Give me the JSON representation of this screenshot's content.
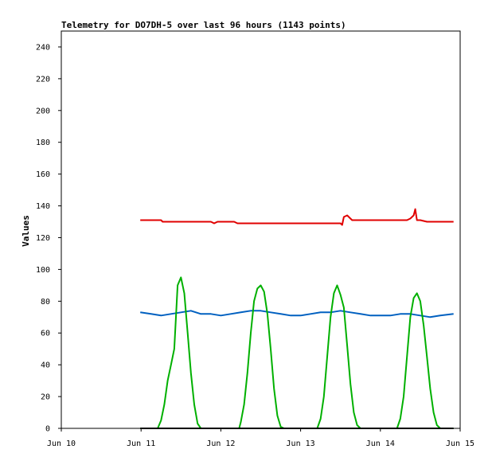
{
  "chart_data": {
    "type": "line",
    "title": "Telemetry for DO7DH-5 over last 96 hours (1143 points)",
    "xlabel": "",
    "ylabel": "Values",
    "xlim": [
      "Jun 10 00:00",
      "Jun 15 00:00"
    ],
    "ylim": [
      0,
      250
    ],
    "x_ticks": [
      "Jun 10",
      "Jun 11",
      "Jun 12",
      "Jun 13",
      "Jun 14",
      "Jun 15"
    ],
    "y_ticks": [
      0,
      20,
      40,
      60,
      80,
      100,
      120,
      140,
      160,
      180,
      200,
      220,
      240
    ],
    "grid": false,
    "legend": "none",
    "series": [
      {
        "color": "#e00000",
        "x": [
          "Jun 10 23:45",
          "Jun 11 06:00",
          "Jun 11 06:30",
          "Jun 11 21:00",
          "Jun 11 22:00",
          "Jun 11 23:00",
          "Jun 12 04:00",
          "Jun 12 05:00",
          "Jun 13 12:00",
          "Jun 13 12:30",
          "Jun 13 13:00",
          "Jun 13 14:00",
          "Jun 13 15:00",
          "Jun 13 15:30",
          "Jun 14 08:00",
          "Jun 14 09:00",
          "Jun 14 10:00",
          "Jun 14 10:30",
          "Jun 14 11:00",
          "Jun 14 12:00",
          "Jun 14 14:00",
          "Jun 14 22:00"
        ],
        "y": [
          131,
          131,
          130,
          130,
          129,
          130,
          130,
          129,
          129,
          128,
          133,
          134,
          132,
          131,
          131,
          132,
          134,
          138,
          131,
          131,
          130,
          130
        ]
      },
      {
        "color": "#0060c0",
        "x": [
          "Jun 10 23:45",
          "Jun 11 03:00",
          "Jun 11 06:00",
          "Jun 11 09:00",
          "Jun 11 12:00",
          "Jun 11 15:00",
          "Jun 11 18:00",
          "Jun 11 21:00",
          "Jun 12 00:00",
          "Jun 12 03:00",
          "Jun 12 06:00",
          "Jun 12 09:00",
          "Jun 12 12:00",
          "Jun 12 15:00",
          "Jun 12 18:00",
          "Jun 12 21:00",
          "Jun 13 00:00",
          "Jun 13 03:00",
          "Jun 13 06:00",
          "Jun 13 09:00",
          "Jun 13 12:00",
          "Jun 13 15:00",
          "Jun 13 18:00",
          "Jun 13 21:00",
          "Jun 14 00:00",
          "Jun 14 03:00",
          "Jun 14 06:00",
          "Jun 14 09:00",
          "Jun 14 12:00",
          "Jun 14 15:00",
          "Jun 14 18:00",
          "Jun 14 22:00"
        ],
        "y": [
          73,
          72,
          71,
          72,
          73,
          74,
          72,
          72,
          71,
          72,
          73,
          74,
          74,
          73,
          72,
          71,
          71,
          72,
          73,
          73,
          74,
          73,
          72,
          71,
          71,
          71,
          72,
          72,
          71,
          70,
          71,
          72
        ]
      },
      {
        "color": "#00b000",
        "x": [
          "Jun 10 23:45",
          "Jun 11 05:00",
          "Jun 11 06:00",
          "Jun 11 07:00",
          "Jun 11 08:00",
          "Jun 11 09:00",
          "Jun 11 10:00",
          "Jun 11 11:00",
          "Jun 11 12:00",
          "Jun 11 13:00",
          "Jun 11 14:00",
          "Jun 11 15:00",
          "Jun 11 16:00",
          "Jun 11 17:00",
          "Jun 11 18:00",
          "Jun 11 19:00",
          "Jun 11 20:00",
          "Jun 11 21:00",
          "Jun 12 05:30",
          "Jun 12 06:00",
          "Jun 12 07:00",
          "Jun 12 08:00",
          "Jun 12 09:00",
          "Jun 12 10:00",
          "Jun 12 11:00",
          "Jun 12 12:00",
          "Jun 12 13:00",
          "Jun 12 14:00",
          "Jun 12 15:00",
          "Jun 12 16:00",
          "Jun 12 17:00",
          "Jun 12 18:00",
          "Jun 12 19:00",
          "Jun 12 20:00",
          "Jun 13 05:00",
          "Jun 13 06:00",
          "Jun 13 07:00",
          "Jun 13 08:00",
          "Jun 13 09:00",
          "Jun 13 10:00",
          "Jun 13 11:00",
          "Jun 13 12:00",
          "Jun 13 13:00",
          "Jun 13 14:00",
          "Jun 13 15:00",
          "Jun 13 16:00",
          "Jun 13 17:00",
          "Jun 13 18:00",
          "Jun 13 19:00",
          "Jun 13 20:00",
          "Jun 14 05:00",
          "Jun 14 06:00",
          "Jun 14 07:00",
          "Jun 14 08:00",
          "Jun 14 09:00",
          "Jun 14 10:00",
          "Jun 14 11:00",
          "Jun 14 12:00",
          "Jun 14 13:00",
          "Jun 14 14:00",
          "Jun 14 15:00",
          "Jun 14 16:00",
          "Jun 14 17:00",
          "Jun 14 18:00",
          "Jun 14 19:00",
          "Jun 14 20:00",
          "Jun 14 22:00"
        ],
        "y": [
          0,
          0,
          5,
          15,
          30,
          40,
          50,
          90,
          95,
          85,
          60,
          35,
          15,
          3,
          0,
          0,
          0,
          0,
          0,
          4,
          15,
          35,
          60,
          80,
          88,
          90,
          86,
          72,
          50,
          25,
          8,
          1,
          0,
          0,
          0,
          6,
          20,
          45,
          70,
          85,
          90,
          84,
          76,
          52,
          28,
          10,
          2,
          0,
          0,
          0,
          0,
          6,
          20,
          45,
          70,
          82,
          85,
          80,
          65,
          45,
          25,
          10,
          2,
          0,
          0,
          0,
          0
        ]
      },
      {
        "color": "#000000",
        "x": [
          "Jun 10 23:45",
          "Jun 14 22:00"
        ],
        "y": [
          0,
          0
        ]
      }
    ]
  }
}
